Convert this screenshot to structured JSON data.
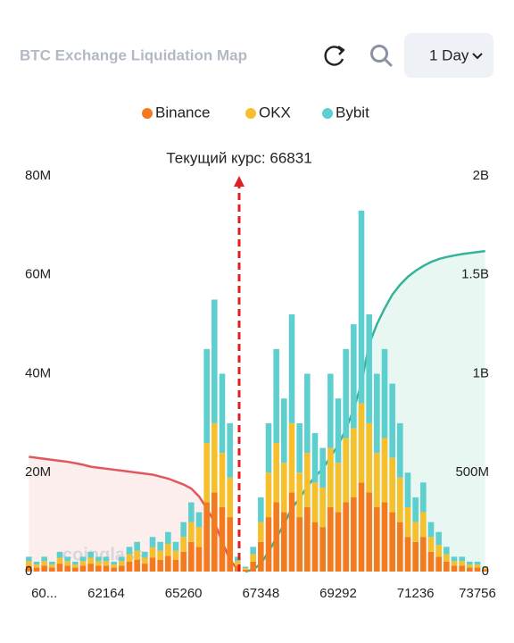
{
  "header": {
    "title": "BTC Exchange Liquidation Map",
    "period": "1 Day"
  },
  "chart_data": {
    "type": "bar",
    "stacked": true,
    "annotation": "Текущий курс: 66831",
    "watermark": "coinglass",
    "categories": [
      null,
      null,
      "60...",
      null,
      null,
      null,
      null,
      null,
      null,
      null,
      "62164",
      null,
      null,
      null,
      null,
      null,
      null,
      null,
      null,
      null,
      "65260",
      null,
      null,
      null,
      null,
      null,
      null,
      null,
      null,
      null,
      "67348",
      null,
      null,
      null,
      null,
      null,
      null,
      null,
      null,
      null,
      "69292",
      null,
      null,
      null,
      null,
      null,
      null,
      null,
      null,
      null,
      "71236",
      null,
      null,
      null,
      null,
      null,
      null,
      null,
      "73756",
      null
    ],
    "series": [
      {
        "name": "Binance",
        "color": "#f47a1f",
        "values": [
          1.2,
          0.8,
          1.2,
          0.8,
          1.6,
          1.2,
          0.8,
          1.2,
          1.6,
          1.2,
          1.2,
          0.8,
          1.2,
          2,
          2.4,
          1.6,
          2.8,
          2.4,
          3.2,
          2.4,
          4,
          6,
          5,
          14,
          16,
          13,
          11,
          1.2,
          0.4,
          2,
          6,
          11,
          14,
          12,
          16,
          11,
          13,
          10,
          9,
          13,
          12,
          14,
          15,
          18,
          16,
          13,
          14,
          12,
          10,
          7,
          6,
          7,
          4,
          3,
          2,
          1.2,
          1.2,
          0.8,
          0.8,
          0.4
        ]
      },
      {
        "name": "OKX",
        "color": "#f5c02c",
        "values": [
          0.9,
          0.6,
          0.9,
          0.6,
          1.2,
          0.9,
          0.6,
          0.9,
          1.2,
          0.9,
          0.9,
          0.6,
          0.9,
          1.5,
          1.8,
          1.2,
          2.1,
          1.8,
          2.4,
          1.8,
          3,
          4,
          4,
          12,
          14,
          11,
          8,
          0.9,
          0.3,
          1.5,
          4,
          9,
          12,
          10,
          14,
          9,
          11,
          8,
          8,
          12,
          10,
          13,
          14,
          16,
          14,
          11,
          13,
          11,
          9,
          6,
          4,
          5,
          3,
          2.4,
          1.5,
          0.9,
          0.9,
          0.6,
          0.6,
          0.3
        ]
      },
      {
        "name": "Bybit",
        "color": "#5ecfcf",
        "values": [
          0.9,
          0.6,
          0.9,
          0.6,
          1.2,
          0.9,
          0.6,
          0.9,
          1.2,
          0.9,
          0.9,
          0.6,
          0.9,
          1.5,
          1.8,
          1.2,
          2.1,
          1.8,
          2.4,
          1.8,
          3,
          4,
          3,
          19,
          25,
          16,
          11,
          0.9,
          0.3,
          1.5,
          5,
          10,
          19,
          13,
          22,
          10,
          16,
          10,
          8,
          15,
          13,
          18,
          21,
          39,
          22,
          16,
          18,
          15,
          11,
          7,
          5,
          6,
          3,
          2.6,
          1.5,
          0.9,
          0.9,
          0.6,
          0.6,
          0.3
        ]
      }
    ],
    "cumulative": [
      {
        "color": "#e0575e",
        "fill": "#fdeeee",
        "axis": "y2",
        "values": [
          580,
          575,
          570,
          565,
          560,
          555,
          548,
          540,
          530,
          525,
          520,
          515,
          510,
          505,
          500,
          495,
          490,
          480,
          470,
          455,
          440,
          420,
          380,
          320,
          250,
          150,
          60,
          10,
          null,
          null,
          null,
          null,
          null,
          null,
          null,
          null,
          null,
          null,
          null,
          null,
          null,
          null,
          null,
          null,
          null,
          null,
          null,
          null,
          null,
          null,
          null,
          null,
          null,
          null,
          null,
          null,
          null,
          null,
          null,
          null
        ]
      },
      {
        "color": "#34b39a",
        "fill": "#e8f7f2",
        "axis": "y2",
        "values": [
          null,
          null,
          null,
          null,
          null,
          null,
          null,
          null,
          null,
          null,
          null,
          null,
          null,
          null,
          null,
          null,
          null,
          null,
          null,
          null,
          null,
          null,
          null,
          null,
          null,
          null,
          null,
          null,
          0,
          10,
          40,
          100,
          170,
          240,
          320,
          370,
          430,
          480,
          520,
          580,
          640,
          720,
          820,
          950,
          1150,
          1250,
          1330,
          1400,
          1450,
          1490,
          1520,
          1545,
          1565,
          1580,
          1590,
          1598,
          1605,
          1610,
          1615,
          1620
        ]
      }
    ],
    "ylim": [
      0,
      80
    ],
    "yticks": [
      {
        "value": 0,
        "label": "0"
      },
      {
        "value": 20,
        "label": "20M"
      },
      {
        "value": 40,
        "label": "40M"
      },
      {
        "value": 60,
        "label": "60M"
      },
      {
        "value": 80,
        "label": "80M"
      }
    ],
    "y2lim": [
      0,
      2000
    ],
    "y2ticks": [
      {
        "value": 0,
        "label": "0"
      },
      {
        "value": 500,
        "label": "500M"
      },
      {
        "value": 1000,
        "label": "1B"
      },
      {
        "value": 1500,
        "label": "1.5B"
      },
      {
        "value": 2000,
        "label": "2B"
      }
    ],
    "grid": false
  }
}
